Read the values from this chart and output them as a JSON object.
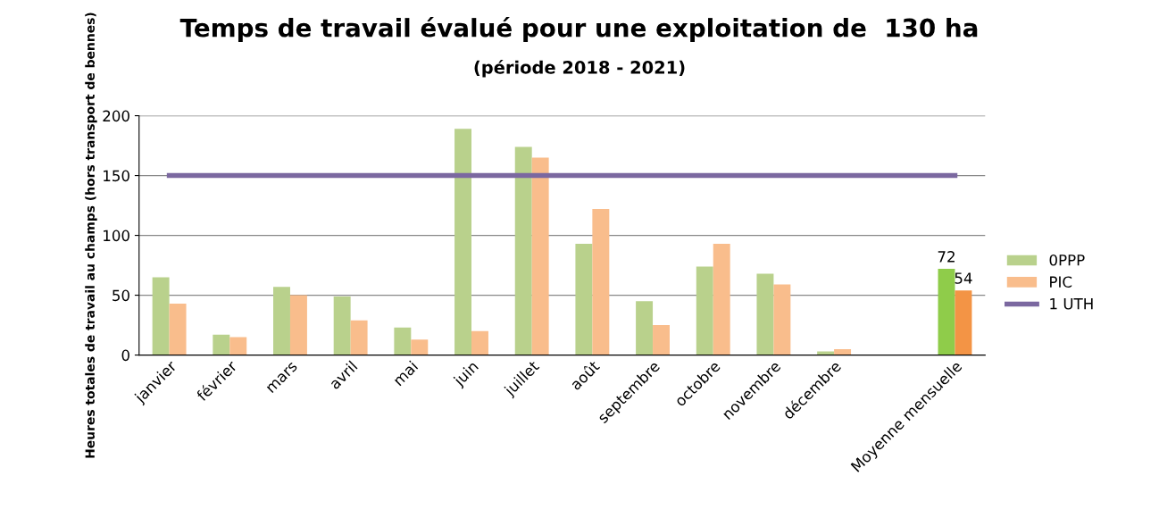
{
  "chart_data": {
    "type": "bar",
    "title": "Temps de travail évalué pour une exploitation de  130 ha",
    "subtitle": "(période 2018 - 2021)",
    "ylabel": "Heures totales de travail au champs (hors transport de bennes)",
    "categories": [
      "janvier",
      "février",
      "mars",
      "avril",
      "mai",
      "juin",
      "juillet",
      "août",
      "septembre",
      "octobre",
      "novembre",
      "décembre",
      null,
      "Moyenne mensuelle"
    ],
    "series": [
      {
        "name": "0PPP",
        "color": "#b9d18c",
        "colors": [
          "#b9d18c",
          "#b9d18c",
          "#b9d18c",
          "#b9d18c",
          "#b9d18c",
          "#b9d18c",
          "#b9d18c",
          "#b9d18c",
          "#b9d18c",
          "#b9d18c",
          "#b9d18c",
          "#b9d18c",
          "#b9d18c",
          "#8fcc4a"
        ],
        "values": [
          65,
          17,
          57,
          49,
          23,
          189,
          174,
          93,
          45,
          74,
          68,
          3,
          null,
          72
        ],
        "value_labels": [
          null,
          null,
          null,
          null,
          null,
          null,
          null,
          null,
          null,
          null,
          null,
          null,
          null,
          "72"
        ]
      },
      {
        "name": "PIC",
        "color": "#f9bd8c",
        "colors": [
          "#f9bd8c",
          "#f9bd8c",
          "#f9bd8c",
          "#f9bd8c",
          "#f9bd8c",
          "#f9bd8c",
          "#f9bd8c",
          "#f9bd8c",
          "#f9bd8c",
          "#f9bd8c",
          "#f9bd8c",
          "#f9bd8c",
          "#f9bd8c",
          "#f39445"
        ],
        "values": [
          43,
          15,
          50,
          29,
          13,
          20,
          165,
          122,
          25,
          93,
          59,
          5,
          null,
          54
        ],
        "value_labels": [
          null,
          null,
          null,
          null,
          null,
          null,
          null,
          null,
          null,
          null,
          null,
          null,
          null,
          "54"
        ]
      },
      {
        "name": "1 UTH",
        "type": "line",
        "color": "#7b68a0",
        "values": [
          150,
          150,
          150,
          150,
          150,
          150,
          150,
          150,
          150,
          150,
          150,
          150,
          150,
          150
        ]
      }
    ],
    "ylim": [
      0,
      200
    ],
    "yticks": [
      0,
      50,
      100,
      150,
      200
    ],
    "grid": "y",
    "legend": "right",
    "marker": "none",
    "line_style": "solid"
  }
}
